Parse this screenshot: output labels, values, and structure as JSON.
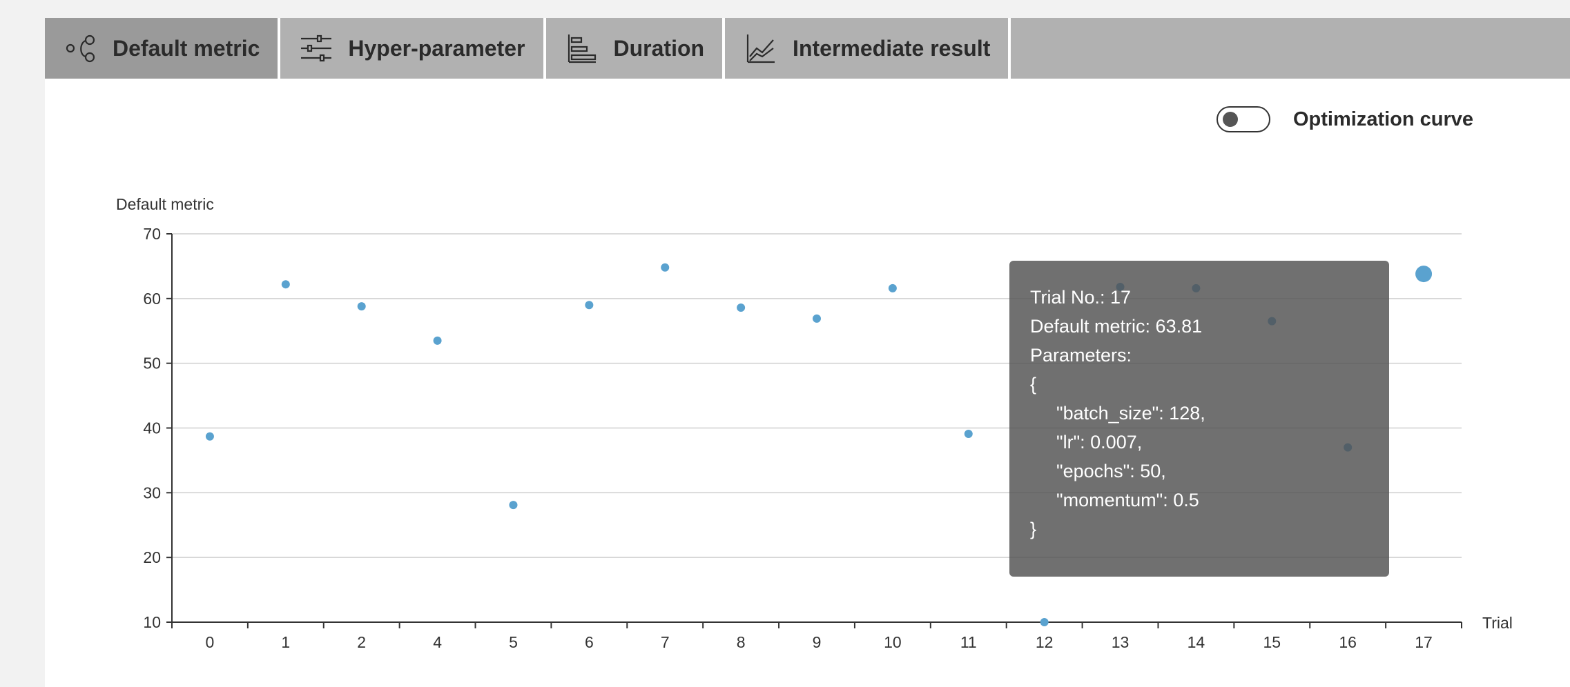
{
  "tabs": [
    {
      "label": "Default metric",
      "icon": "scatter-nodes-icon",
      "active": true
    },
    {
      "label": "Hyper-parameter",
      "icon": "sliders-icon",
      "active": false
    },
    {
      "label": "Duration",
      "icon": "horizontal-bar-icon",
      "active": false
    },
    {
      "label": "Intermediate result",
      "icon": "line-chart-icon",
      "active": false
    }
  ],
  "toggle": {
    "label": "Optimization curve",
    "on": false
  },
  "colors": {
    "point": "#5aa2cf",
    "tooltip_bg": "#505050"
  },
  "chart_data": {
    "type": "scatter",
    "ylabel": "Default metric",
    "xlabel": "Trial",
    "ylim": [
      10,
      70
    ],
    "yticks": [
      10,
      20,
      30,
      40,
      50,
      60,
      70
    ],
    "grid": true,
    "categories": [
      "0",
      "1",
      "2",
      "4",
      "5",
      "6",
      "7",
      "8",
      "9",
      "10",
      "11",
      "12",
      "13",
      "14",
      "15",
      "16",
      "17"
    ],
    "series": [
      {
        "values": [
          38.7,
          62.2,
          58.8,
          53.5,
          28.1,
          59.0,
          64.8,
          58.6,
          56.9,
          61.6,
          39.1,
          10.0,
          61.8,
          61.6,
          56.5,
          37.0,
          63.81
        ]
      }
    ],
    "highlighted_index": 16
  },
  "tooltip": {
    "trial": "Trial No.: 17",
    "metric": "Default metric: 63.81",
    "params_label": "Parameters:",
    "open_brace": "{",
    "lines": [
      "\"batch_size\": 128,",
      "\"lr\": 0.007,",
      "\"epochs\": 50,",
      "\"momentum\": 0.5"
    ],
    "close_brace": "}"
  }
}
